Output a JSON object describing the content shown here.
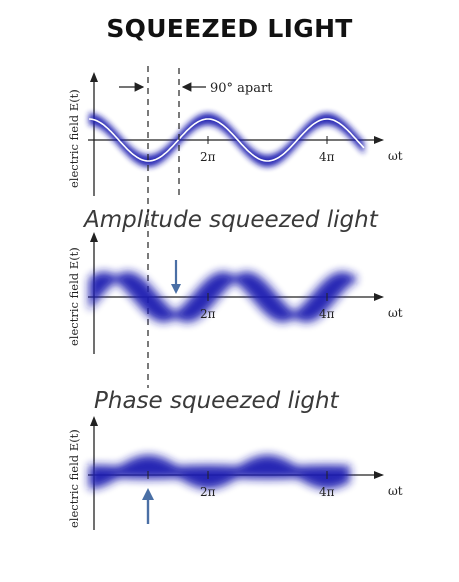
{
  "title": "SQUEEZED LIGHT",
  "y_axis_label": "electric field E(t)",
  "x_axis_label": "ωt",
  "tick_2pi": "2π",
  "tick_4pi": "4π",
  "phase_note": "90° apart",
  "panels": [
    {
      "name": "coherent",
      "subtitle": ""
    },
    {
      "name": "amplitude-squeezed",
      "subtitle": "Amplitude squeezed light"
    },
    {
      "name": "phase-squeezed",
      "subtitle": "Phase squeezed light"
    }
  ],
  "colors": {
    "wave": "#1a1fb0",
    "axis": "#222222",
    "arrow": "#4a6fa5"
  }
}
